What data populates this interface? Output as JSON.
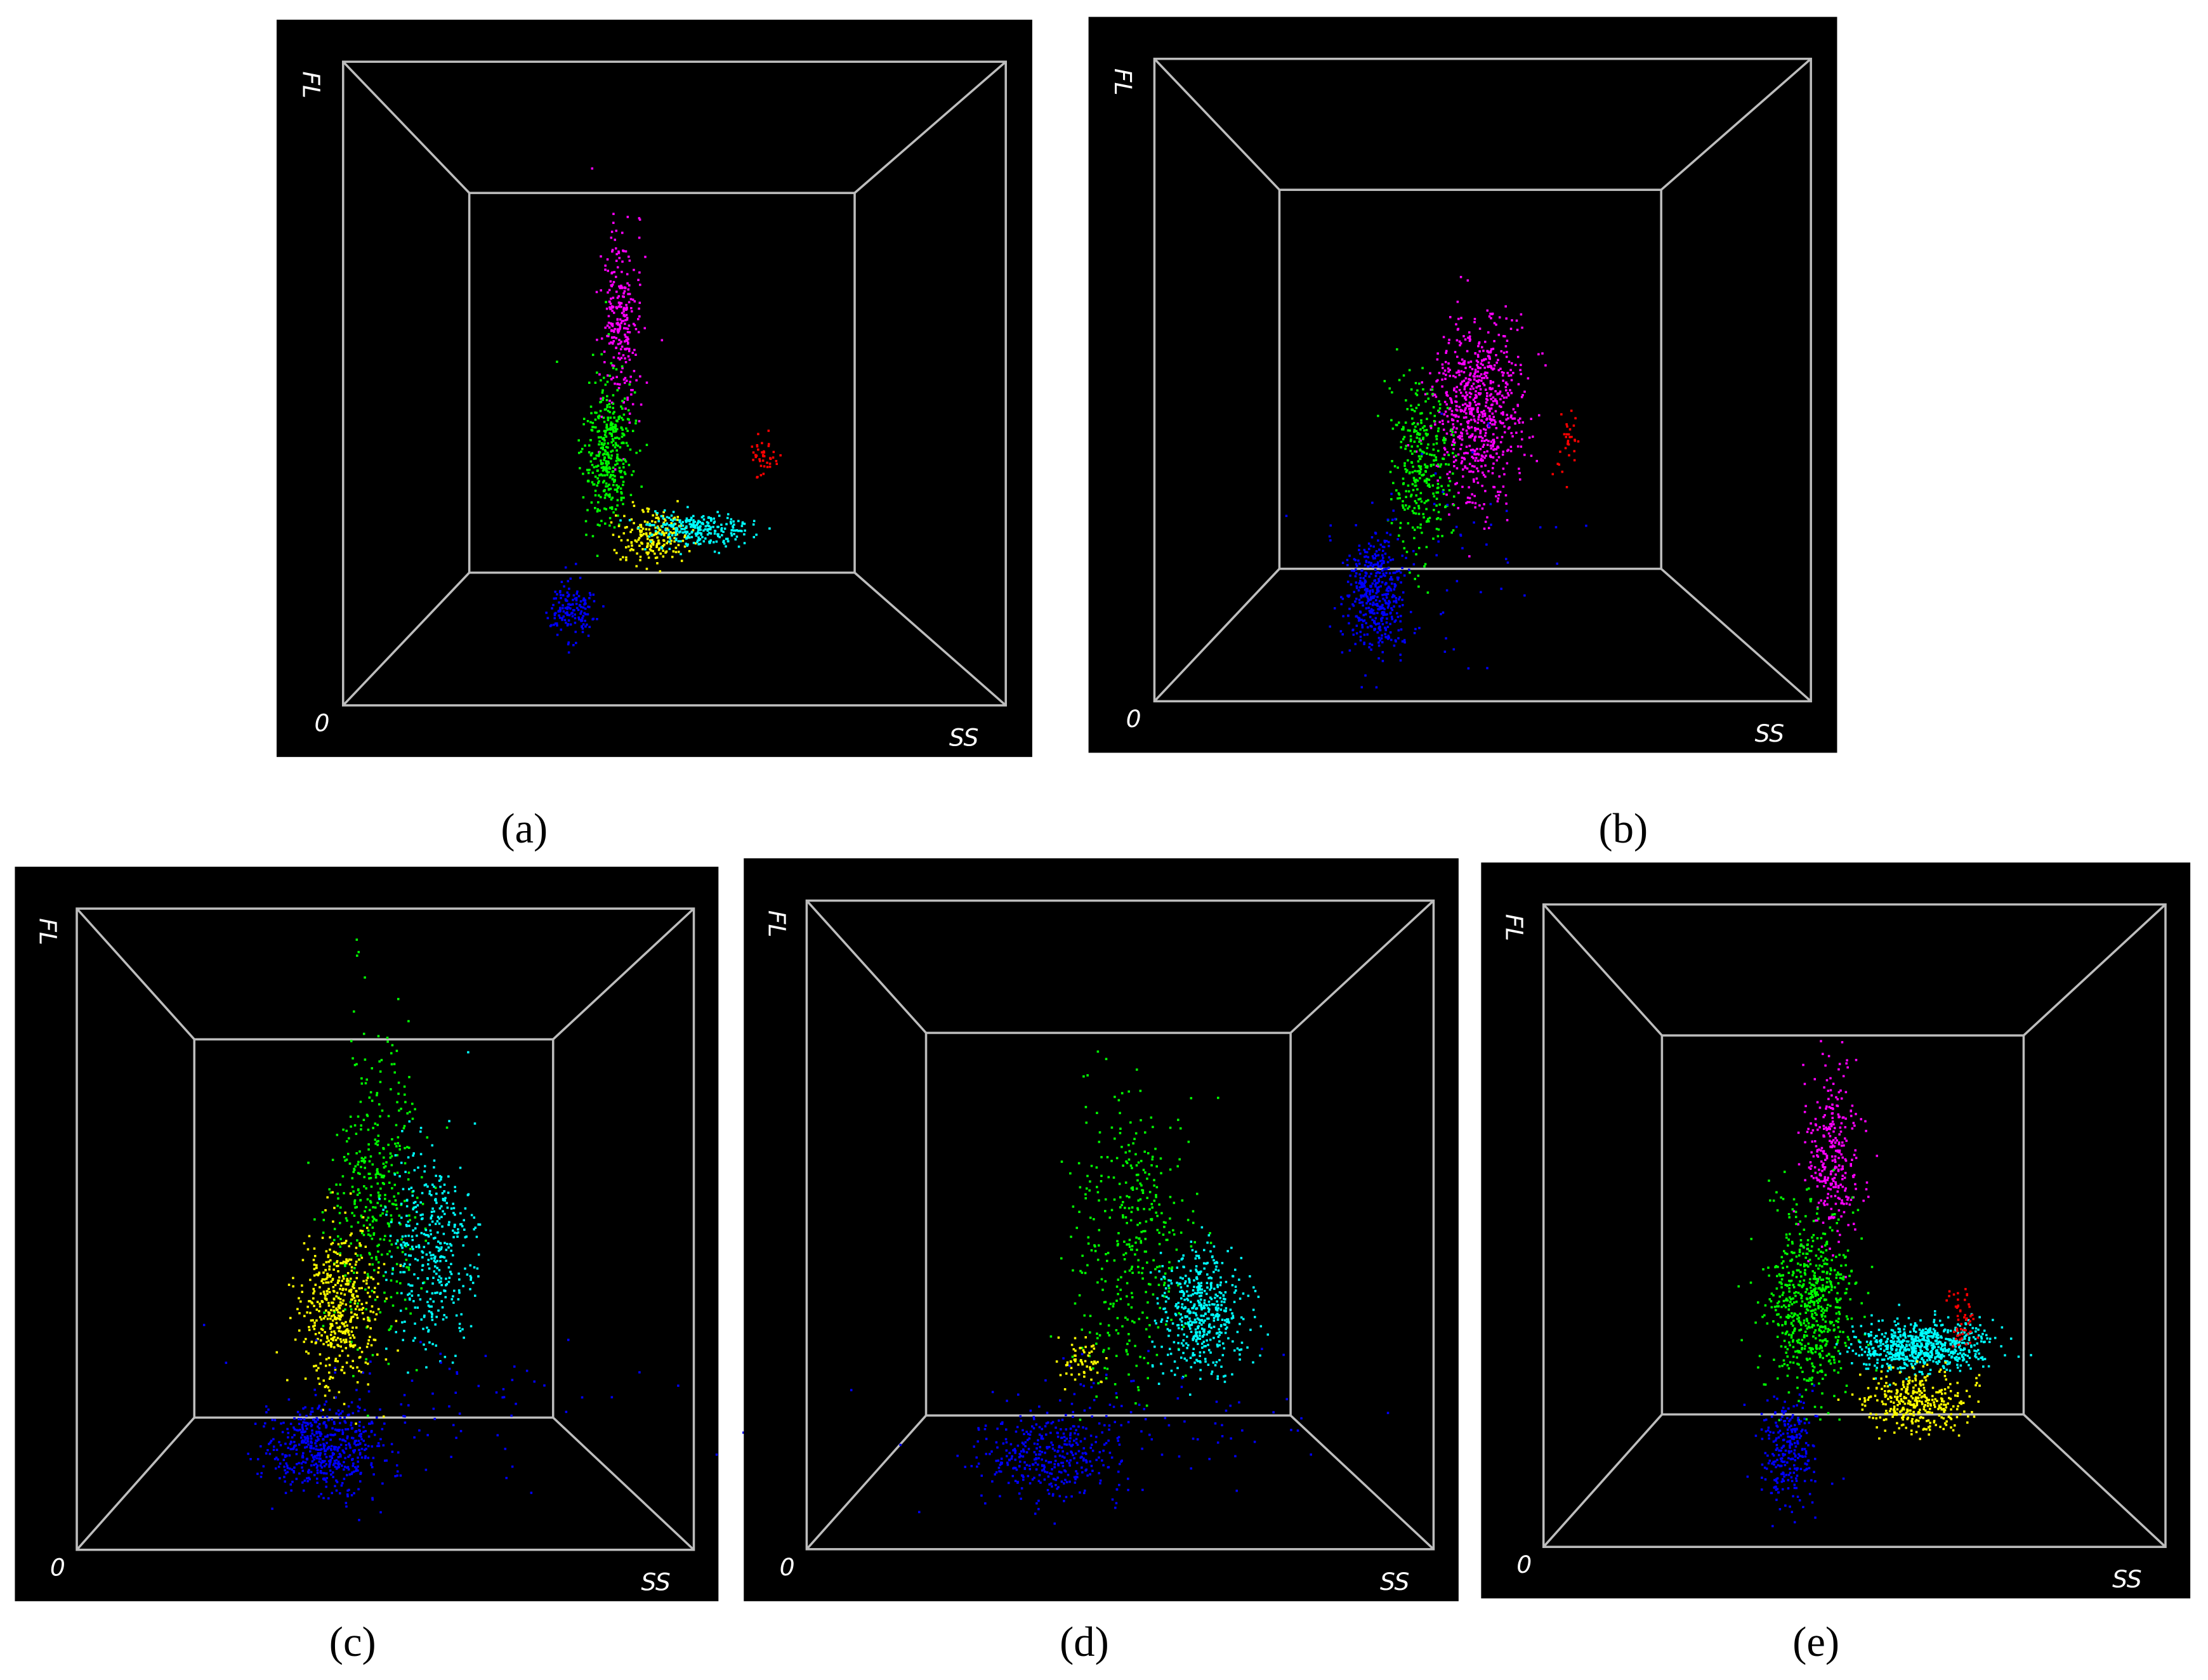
{
  "panels": [
    {
      "y_axis_label": "FL",
      "origin_label": "0",
      "x_axis_label": "SS",
      "caption": "(a)"
    },
    {
      "y_axis_label": "FL",
      "origin_label": "0",
      "x_axis_label": "SS",
      "caption": "(b)"
    },
    {
      "y_axis_label": "FL",
      "origin_label": "0",
      "x_axis_label": "SS",
      "caption": "(c)"
    },
    {
      "y_axis_label": "FL",
      "origin_label": "0",
      "x_axis_label": "SS",
      "caption": "(d)"
    },
    {
      "y_axis_label": "FL",
      "origin_label": "0",
      "x_axis_label": "SS",
      "caption": "(e)"
    }
  ]
}
